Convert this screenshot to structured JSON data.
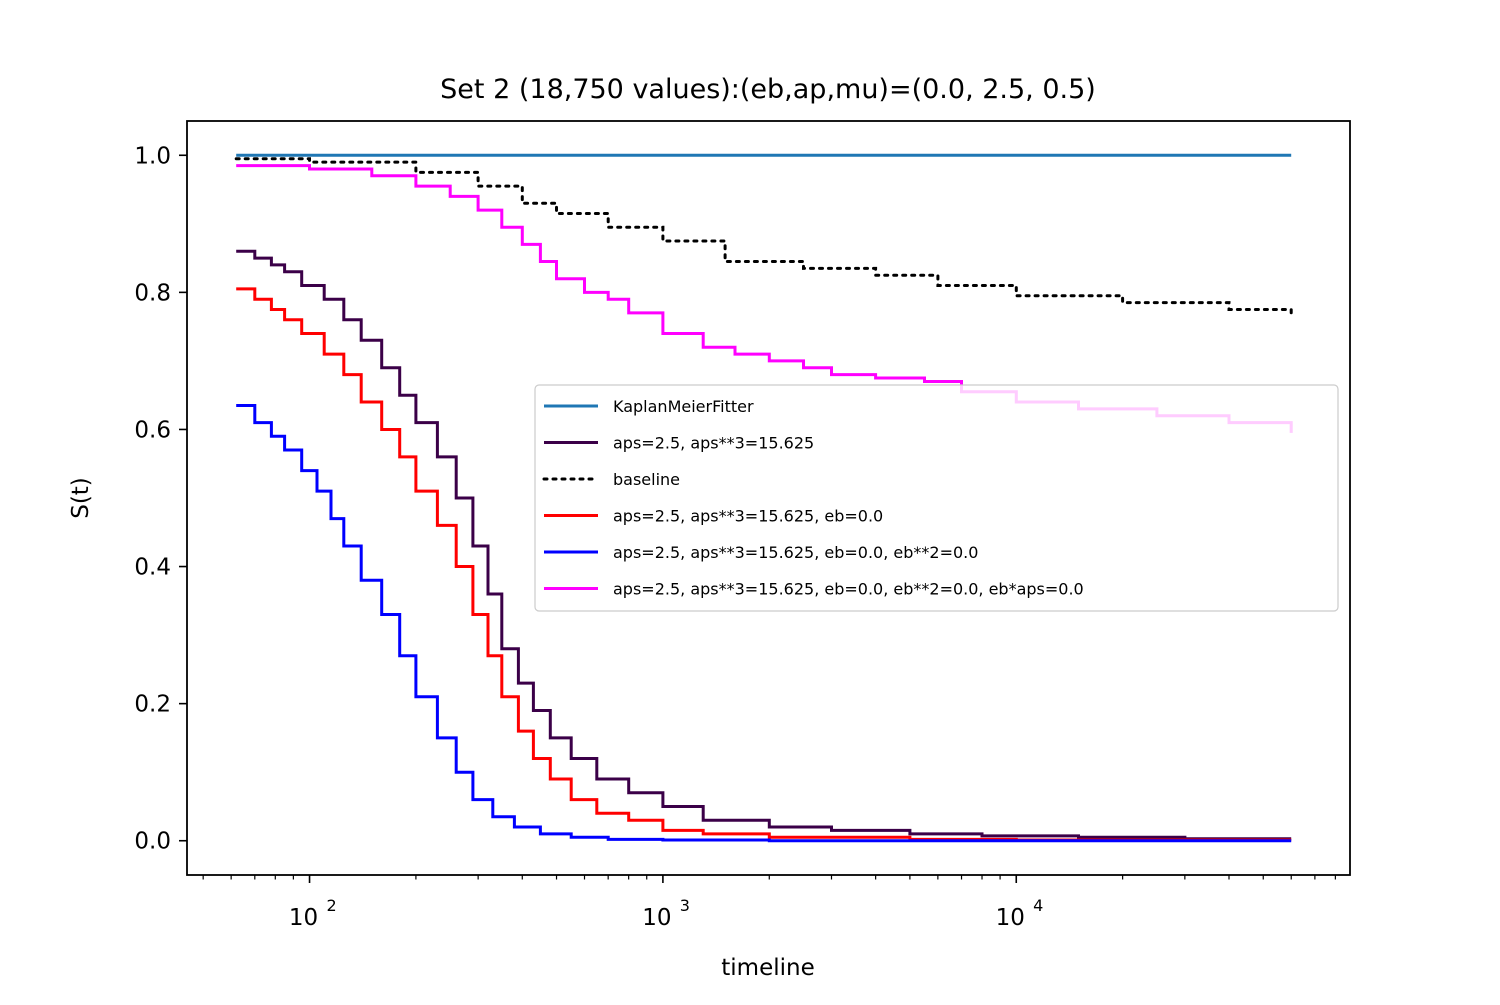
{
  "chart_data": {
    "type": "line",
    "title": "Set 2 (18,750 values):(eb,ap,mu)=(0.0, 2.5, 0.5)",
    "xlabel": "timeline",
    "ylabel": "S(t)",
    "xscale": "log",
    "xlim": [
      45,
      88000
    ],
    "ylim": [
      -0.05,
      1.05
    ],
    "x_ticks": [
      {
        "base": "10",
        "exp": "2",
        "value": 100
      },
      {
        "base": "10",
        "exp": "3",
        "value": 1000
      },
      {
        "base": "10",
        "exp": "4",
        "value": 10000
      }
    ],
    "y_ticks": [
      {
        "label": "0.0",
        "value": 0.0
      },
      {
        "label": "0.2",
        "value": 0.2
      },
      {
        "label": "0.4",
        "value": 0.4
      },
      {
        "label": "0.6",
        "value": 0.6
      },
      {
        "label": "0.8",
        "value": 0.8
      },
      {
        "label": "1.0",
        "value": 1.0
      }
    ],
    "grid": false,
    "legend_position": "center-right",
    "series": [
      {
        "name": "KaplanMeierFitter",
        "color": "#1f77b4",
        "style": "solid",
        "step": false,
        "x": [
          62,
          60000
        ],
        "y": [
          1.0,
          1.0
        ]
      },
      {
        "name": "aps=2.5, aps**3=15.625",
        "color": "#3b0048",
        "style": "solid",
        "step": true,
        "x": [
          62,
          70,
          78,
          85,
          95,
          110,
          125,
          140,
          160,
          180,
          200,
          230,
          260,
          290,
          320,
          350,
          390,
          430,
          480,
          550,
          650,
          800,
          1000,
          1300,
          2000,
          3000,
          5000,
          8000,
          15000,
          30000,
          60000
        ],
        "y": [
          0.86,
          0.85,
          0.84,
          0.83,
          0.81,
          0.79,
          0.76,
          0.73,
          0.69,
          0.65,
          0.61,
          0.56,
          0.5,
          0.43,
          0.36,
          0.28,
          0.23,
          0.19,
          0.15,
          0.12,
          0.09,
          0.07,
          0.05,
          0.03,
          0.02,
          0.015,
          0.01,
          0.007,
          0.005,
          0.003,
          0.003
        ]
      },
      {
        "name": "baseline",
        "color": "#000000",
        "style": "dotted",
        "step": true,
        "x": [
          62,
          100,
          200,
          300,
          400,
          500,
          700,
          1000,
          1500,
          2500,
          4000,
          6000,
          10000,
          20000,
          40000,
          60000
        ],
        "y": [
          0.995,
          0.99,
          0.975,
          0.955,
          0.93,
          0.915,
          0.895,
          0.875,
          0.845,
          0.835,
          0.825,
          0.81,
          0.795,
          0.785,
          0.775,
          0.765
        ]
      },
      {
        "name": "aps=2.5, aps**3=15.625, eb=0.0",
        "color": "#ff0000",
        "style": "solid",
        "step": true,
        "x": [
          62,
          70,
          78,
          85,
          95,
          110,
          125,
          140,
          160,
          180,
          200,
          230,
          260,
          290,
          320,
          350,
          390,
          430,
          480,
          550,
          650,
          800,
          1000,
          1300,
          2000,
          5000,
          10000,
          30000,
          60000
        ],
        "y": [
          0.805,
          0.79,
          0.775,
          0.76,
          0.74,
          0.71,
          0.68,
          0.64,
          0.6,
          0.56,
          0.51,
          0.46,
          0.4,
          0.33,
          0.27,
          0.21,
          0.16,
          0.12,
          0.09,
          0.06,
          0.04,
          0.03,
          0.015,
          0.01,
          0.005,
          0.002,
          0.001,
          0.001,
          0.001
        ]
      },
      {
        "name": "aps=2.5, aps**3=15.625, eb=0.0, eb**2=0.0",
        "color": "#0000ff",
        "style": "solid",
        "step": true,
        "x": [
          62,
          70,
          78,
          85,
          95,
          105,
          115,
          125,
          140,
          160,
          180,
          200,
          230,
          260,
          290,
          330,
          380,
          450,
          550,
          700,
          1000,
          2000,
          10000,
          60000
        ],
        "y": [
          0.635,
          0.61,
          0.59,
          0.57,
          0.54,
          0.51,
          0.47,
          0.43,
          0.38,
          0.33,
          0.27,
          0.21,
          0.15,
          0.1,
          0.06,
          0.035,
          0.02,
          0.01,
          0.005,
          0.002,
          0.001,
          0.0,
          0.0,
          0.0
        ]
      },
      {
        "name": "aps=2.5, aps**3=15.625, eb=0.0, eb**2=0.0, eb*aps=0.0",
        "color": "#ff00ff",
        "style": "solid",
        "step": true,
        "x": [
          62,
          100,
          150,
          200,
          250,
          300,
          350,
          400,
          450,
          500,
          600,
          700,
          800,
          1000,
          1300,
          1600,
          2000,
          2500,
          3000,
          4000,
          5500,
          7000,
          10000,
          15000,
          25000,
          40000,
          60000
        ],
        "y": [
          0.985,
          0.98,
          0.97,
          0.955,
          0.94,
          0.92,
          0.895,
          0.87,
          0.845,
          0.82,
          0.8,
          0.79,
          0.77,
          0.74,
          0.72,
          0.71,
          0.7,
          0.69,
          0.68,
          0.675,
          0.67,
          0.655,
          0.64,
          0.63,
          0.62,
          0.61,
          0.595
        ]
      }
    ]
  }
}
